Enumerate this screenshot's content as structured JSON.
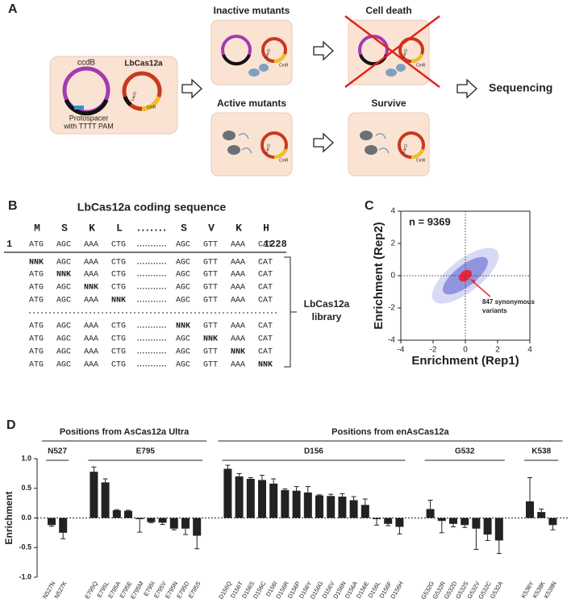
{
  "panel_a": {
    "label": "A",
    "inactive": "Inactive mutants",
    "cell_death": "Cell death",
    "active": "Active mutants",
    "survive": "Survive",
    "sequencing": "Sequencing",
    "ccdb": "ccdB",
    "lbcas12a": "LbCas12a",
    "protospacer": [
      "Protospacer",
      "with TTTT PAM"
    ],
    "laco": "LacO",
    "cmr": "CmR"
  },
  "panel_b": {
    "label": "B",
    "title": "LbCas12a coding sequence",
    "amino_acids": [
      "M",
      "S",
      "K",
      "L",
      ".......",
      "S",
      "V",
      "K",
      "H"
    ],
    "start": "1",
    "end": "1228",
    "codons": [
      "ATG",
      "AGC",
      "AAA",
      "CTG",
      "...........",
      "AGC",
      "GTT",
      "AAA",
      "CAT"
    ],
    "library_rows": [
      [
        "NNK",
        "AGC",
        "AAA",
        "CTG",
        "...........",
        "AGC",
        "GTT",
        "AAA",
        "CAT"
      ],
      [
        "ATG",
        "NNK",
        "AAA",
        "CTG",
        "...........",
        "AGC",
        "GTT",
        "AAA",
        "CAT"
      ],
      [
        "ATG",
        "AGC",
        "NNK",
        "CTG",
        "...........",
        "AGC",
        "GTT",
        "AAA",
        "CAT"
      ],
      [
        "ATG",
        "AGC",
        "AAA",
        "NNK",
        "...........",
        "AGC",
        "GTT",
        "AAA",
        "CAT"
      ],
      [
        "ATG",
        "AGC",
        "AAA",
        "CTG",
        "...........",
        "NNK",
        "GTT",
        "AAA",
        "CAT"
      ],
      [
        "ATG",
        "AGC",
        "AAA",
        "CTG",
        "...........",
        "AGC",
        "NNK",
        "AAA",
        "CAT"
      ],
      [
        "ATG",
        "AGC",
        "AAA",
        "CTG",
        "...........",
        "AGC",
        "GTT",
        "NNK",
        "CAT"
      ],
      [
        "ATG",
        "AGC",
        "AAA",
        "CTG",
        "...........",
        "AGC",
        "GTT",
        "AAA",
        "NNK"
      ]
    ],
    "library_label": [
      "LbCas12a",
      "library"
    ]
  },
  "chart_data": [
    {
      "type": "scatter",
      "label": "C",
      "annotation": "n = 9369",
      "callout": [
        "847 synonymous",
        "variants"
      ],
      "xlabel": "Enrichment (Rep1)",
      "ylabel": "Enrichment (Rep2)",
      "xlim": [
        -4,
        4
      ],
      "ylim": [
        -4,
        4
      ],
      "xticks": [
        -4,
        -2,
        0,
        2,
        4
      ],
      "yticks": [
        -4,
        -2,
        0,
        2,
        4
      ]
    },
    {
      "type": "bar",
      "label": "D",
      "ylabel": "Enrichment",
      "color": "#222222",
      "ylim": [
        -1,
        1
      ],
      "yticks": [
        {
          "value": -1,
          "label": "-1.0"
        },
        {
          "value": -0.5,
          "label": "-0.5"
        },
        {
          "value": 0,
          "label": "0.0"
        },
        {
          "value": 0.5,
          "label": "0.5"
        },
        {
          "value": 1,
          "label": "1.0"
        }
      ],
      "sections": [
        {
          "label": "Positions from AsCas12a Ultra",
          "groups": [
            {
              "label": "N527",
              "categories": [
                "N527N",
                "N527K"
              ],
              "values": [
                -0.12,
                -0.25
              ],
              "errors": [
                0.02,
                0.1
              ]
            },
            {
              "label": "E795",
              "categories": [
                "E795Q",
                "E795L",
                "E795A",
                "E795E",
                "E795M",
                "E795I",
                "E795V",
                "E795N",
                "E795D",
                "E795S"
              ],
              "values": [
                0.78,
                0.6,
                0.13,
                0.12,
                -0.02,
                -0.07,
                -0.08,
                -0.18,
                -0.18,
                -0.3
              ],
              "errors": [
                0.08,
                0.06,
                0.01,
                0.01,
                0.22,
                0.01,
                0.03,
                0.02,
                0.1,
                0.22
              ]
            }
          ]
        },
        {
          "label": "Positions from enAsCas12a",
          "groups": [
            {
              "label": "D156",
              "categories": [
                "D156Q",
                "D156T",
                "D156S",
                "D156C",
                "D156I",
                "D156R",
                "D156P",
                "D156Y",
                "D156G",
                "D156V",
                "D156N",
                "D156A",
                "D156E",
                "D156L",
                "D156F",
                "D156H"
              ],
              "values": [
                0.83,
                0.7,
                0.66,
                0.64,
                0.58,
                0.47,
                0.46,
                0.43,
                0.38,
                0.37,
                0.36,
                0.3,
                0.22,
                -0.02,
                -0.1,
                -0.15
              ],
              "errors": [
                0.06,
                0.05,
                0.02,
                0.08,
                0.08,
                0.02,
                0.07,
                0.1,
                0.01,
                0.03,
                0.05,
                0.06,
                0.1,
                0.1,
                0.03,
                0.12
              ]
            },
            {
              "label": "G532",
              "categories": [
                "G532G",
                "G532R",
                "G532D",
                "G532S",
                "G532V",
                "G532C",
                "G532A"
              ],
              "values": [
                0.15,
                -0.05,
                -0.1,
                -0.12,
                -0.18,
                -0.28,
                -0.38
              ],
              "errors": [
                0.15,
                0.2,
                0.05,
                0.04,
                0.35,
                0.1,
                0.22
              ]
            },
            {
              "label": "K538",
              "categories": [
                "K538Y",
                "K538K",
                "K538N"
              ],
              "values": [
                0.28,
                0.1,
                -0.12
              ],
              "errors": [
                0.4,
                0.05,
                0.08
              ]
            }
          ]
        }
      ]
    }
  ]
}
